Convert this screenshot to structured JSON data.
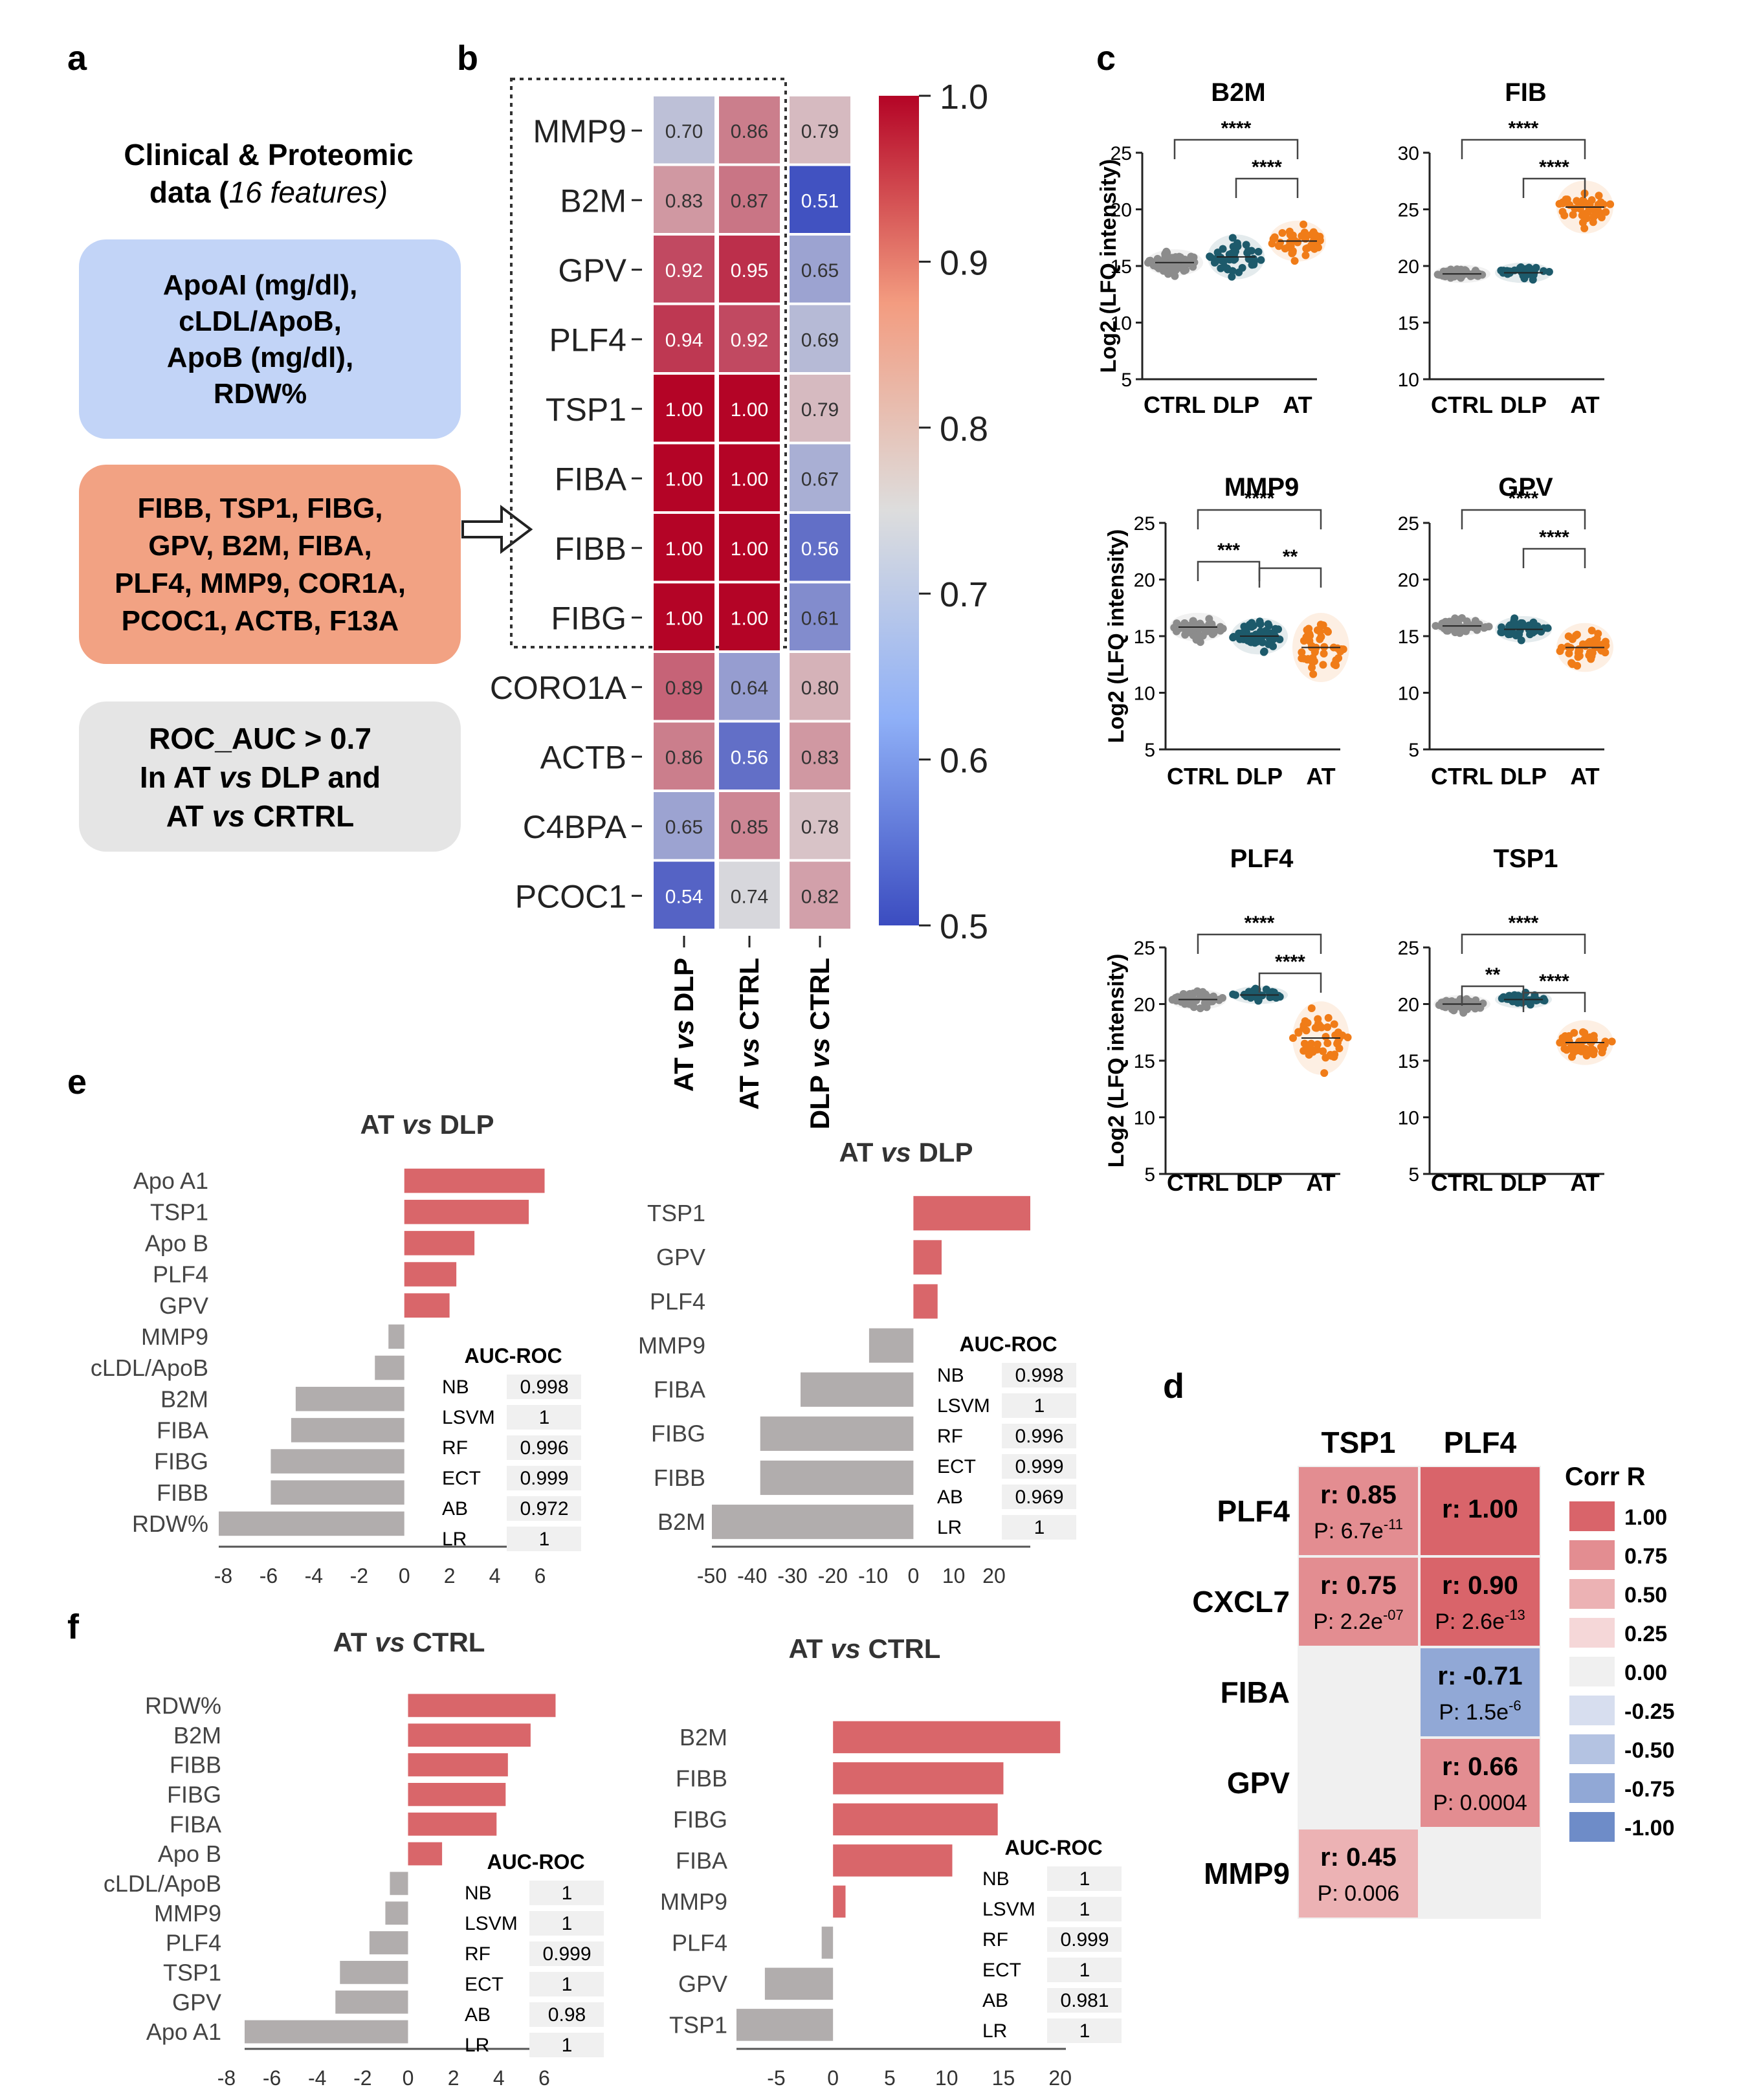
{
  "panel_labels": {
    "a": "a",
    "b": "b",
    "c": "c",
    "d": "d",
    "e": "e",
    "f": "f"
  },
  "panel_a": {
    "title_line1": "Clinical & Proteomic",
    "title_line2_pre": "data (",
    "title_line2_italic": "16 features)",
    "box_blue": [
      "ApoAI (mg/dl),",
      "cLDL/ApoB,",
      "ApoB (mg/dl),",
      "RDW%"
    ],
    "box_orange": [
      "FIBB, TSP1, FIBG,",
      "GPV, B2M, FIBA,",
      "PLF4, MMP9, COR1A,",
      "PCOC1, ACTB, F13A"
    ],
    "box_gray_line1": "ROC_AUC > 0.7",
    "box_gray_line2": [
      {
        "t": "In AT ",
        "i": false
      },
      {
        "t": "vs",
        "i": true
      },
      {
        "t": " DLP and",
        "i": false
      }
    ],
    "box_gray_line3": [
      {
        "t": "AT ",
        "i": false
      },
      {
        "t": "vs",
        "i": true
      },
      {
        "t": " CRTRL",
        "i": false
      }
    ],
    "colors": {
      "blue": "#c2d4f7",
      "orange": "#f2a283",
      "gray": "#e5e5e5"
    }
  },
  "chart_data": [
    {
      "panel": "b",
      "type": "heatmap",
      "rows": [
        "MMP9",
        "B2M",
        "GPV",
        "PLF4",
        "TSP1",
        "FIBA",
        "FIBB",
        "FIBG",
        "CORO1A",
        "ACTB",
        "C4BPA",
        "PCOC1"
      ],
      "columns": [
        [
          {
            "t": "AT ",
            "i": false
          },
          {
            "t": "vs",
            "i": true
          },
          {
            "t": " DLP",
            "i": false
          }
        ],
        [
          {
            "t": "AT ",
            "i": false
          },
          {
            "t": "vs",
            "i": true
          },
          {
            "t": " CTRL",
            "i": false
          }
        ],
        [
          {
            "t": "DLP ",
            "i": false
          },
          {
            "t": "vs",
            "i": true
          },
          {
            "t": " CTRL",
            "i": false
          }
        ]
      ],
      "values": [
        [
          0.7,
          0.86,
          0.79
        ],
        [
          0.83,
          0.87,
          0.51
        ],
        [
          0.92,
          0.95,
          0.65
        ],
        [
          0.94,
          0.92,
          0.69
        ],
        [
          1.0,
          1.0,
          0.79
        ],
        [
          1.0,
          1.0,
          0.67
        ],
        [
          1.0,
          1.0,
          0.56
        ],
        [
          1.0,
          1.0,
          0.61
        ],
        [
          0.89,
          0.64,
          0.8
        ],
        [
          0.86,
          0.56,
          0.83
        ],
        [
          0.65,
          0.85,
          0.78
        ],
        [
          0.54,
          0.74,
          0.82
        ]
      ],
      "labels": [
        [
          "0.70",
          "0.86",
          "0.79"
        ],
        [
          "0.83",
          "0.87",
          "0.51"
        ],
        [
          "0.92",
          "0.95",
          "0.65"
        ],
        [
          "0.94",
          "0.92",
          "0.69"
        ],
        [
          "1.00",
          "1.00",
          "0.79"
        ],
        [
          "1.00",
          "1.00",
          "0.67"
        ],
        [
          "1.00",
          "1.00",
          "0.56"
        ],
        [
          "1.00",
          "1.00",
          "0.61"
        ],
        [
          "0.89",
          "0.64",
          "0.80"
        ],
        [
          "0.86",
          "0.56",
          "0.83"
        ],
        [
          "0.65",
          "0.85",
          "0.78"
        ],
        [
          "0.54",
          "0.74",
          "0.82"
        ]
      ],
      "colorbar_ticks": [
        "1.0",
        "0.9",
        "0.8",
        "0.7",
        "0.6",
        "0.5"
      ],
      "range": [
        0.5,
        1.0
      ],
      "colormap": [
        "#3b4cc0",
        "#dddddd",
        "#b40426"
      ],
      "highlight_rows": [
        "MMP9",
        "B2M",
        "GPV",
        "PLF4",
        "TSP1",
        "FIBA",
        "FIBB",
        "FIBG"
      ]
    },
    {
      "panel": "c",
      "type": "scatter",
      "ylabel": "Log2 (LFQ intensity)",
      "groups": [
        "CTRL",
        "DLP",
        "AT"
      ],
      "group_colors": [
        "#8c8c8c",
        "#1d5a6b",
        "#f07c18"
      ],
      "plots": [
        {
          "title": "B2M",
          "ylim": [
            5,
            25
          ],
          "yticks": [
            "5",
            "10",
            "15",
            "20",
            "25"
          ],
          "medians": [
            15.3,
            15.8,
            17.2
          ],
          "spread": [
            1.3,
            2.2,
            2.0
          ],
          "n": [
            60,
            42,
            40
          ],
          "sig": [
            {
              "from": 0,
              "to": 2,
              "label": "****"
            },
            {
              "from": 1,
              "to": 2,
              "label": "****"
            }
          ]
        },
        {
          "title": "FIB",
          "ylim": [
            10,
            30
          ],
          "yticks": [
            "10",
            "15",
            "20",
            "25",
            "30"
          ],
          "medians": [
            19.3,
            19.4,
            25.2
          ],
          "spread": [
            0.6,
            1.0,
            2.6
          ],
          "n": [
            55,
            28,
            45
          ],
          "sig": [
            {
              "from": 0,
              "to": 2,
              "label": "****"
            },
            {
              "from": 1,
              "to": 2,
              "label": "****"
            }
          ]
        },
        {
          "title": "MMP9",
          "ylim": [
            5,
            25
          ],
          "yticks": [
            "5",
            "10",
            "15",
            "20",
            "25"
          ],
          "medians": [
            15.8,
            15.0,
            14.0
          ],
          "spread": [
            1.4,
            1.8,
            3.4
          ],
          "n": [
            55,
            50,
            45
          ],
          "sig": [
            {
              "from": 0,
              "to": 2,
              "label": "****"
            },
            {
              "from": 0,
              "to": 1,
              "label": "***"
            },
            {
              "from": 1,
              "to": 2,
              "label": "**"
            }
          ]
        },
        {
          "title": "GPV",
          "ylim": [
            5,
            25
          ],
          "yticks": [
            "5",
            "10",
            "15",
            "20",
            "25"
          ],
          "medians": [
            15.9,
            15.6,
            14.0
          ],
          "spread": [
            0.9,
            1.3,
            2.4
          ],
          "n": [
            55,
            40,
            40
          ],
          "sig": [
            {
              "from": 0,
              "to": 2,
              "label": "****"
            },
            {
              "from": 1,
              "to": 2,
              "label": "****"
            }
          ]
        },
        {
          "title": "PLF4",
          "ylim": [
            5,
            25
          ],
          "yticks": [
            "5",
            "10",
            "15",
            "20",
            "25"
          ],
          "medians": [
            20.4,
            20.8,
            17.0
          ],
          "spread": [
            1.0,
            0.8,
            3.6
          ],
          "n": [
            55,
            30,
            45
          ],
          "sig": [
            {
              "from": 0,
              "to": 2,
              "label": "****"
            },
            {
              "from": 1,
              "to": 2,
              "label": "****"
            }
          ]
        },
        {
          "title": "TSP1",
          "ylim": [
            5,
            25
          ],
          "yticks": [
            "5",
            "10",
            "15",
            "20",
            "25"
          ],
          "medians": [
            20.0,
            20.4,
            16.6
          ],
          "spread": [
            0.9,
            0.8,
            2.2
          ],
          "n": [
            55,
            35,
            45
          ],
          "sig": [
            {
              "from": 0,
              "to": 2,
              "label": "****"
            },
            {
              "from": 0,
              "to": 1,
              "label": "**"
            },
            {
              "from": 1,
              "to": 2,
              "label": "****"
            }
          ]
        }
      ]
    },
    {
      "panel": "d",
      "type": "heatmap",
      "columns": [
        "TSP1",
        "PLF4"
      ],
      "rows": [
        "PLF4",
        "CXCL7",
        "FIBA",
        "GPV",
        "MMP9"
      ],
      "cells": [
        [
          {
            "r": 0.85,
            "rtext": "r: 0.85",
            "pbase": "P: 6.7e",
            "pexp": "-11"
          },
          {
            "r": 1.0,
            "rtext": "r: 1.00",
            "pbase": "",
            "pexp": ""
          }
        ],
        [
          {
            "r": 0.75,
            "rtext": "r: 0.75",
            "pbase": "P: 2.2e",
            "pexp": "-07"
          },
          {
            "r": 0.9,
            "rtext": "r: 0.90",
            "pbase": "P: 2.6e",
            "pexp": "-13"
          }
        ],
        [
          null,
          {
            "r": -0.71,
            "rtext": "r: -0.71",
            "pbase": "P: 1.5e",
            "pexp": "-6"
          }
        ],
        [
          null,
          {
            "r": 0.66,
            "rtext": "r: 0.66",
            "pbase": "P: 0.0004",
            "pexp": ""
          }
        ],
        [
          {
            "r": 0.45,
            "rtext": "r: 0.45",
            "pbase": "P: 0.006",
            "pexp": ""
          },
          null
        ]
      ],
      "legend_title": "Corr R",
      "legend": [
        {
          "label": "1.00",
          "color": "#d9646a"
        },
        {
          "label": "0.75",
          "color": "#e38d91"
        },
        {
          "label": "0.50",
          "color": "#ecb2b4"
        },
        {
          "label": "0.25",
          "color": "#f5d7d8"
        },
        {
          "label": "0.00",
          "color": "#f0f0f0"
        },
        {
          "label": "-0.25",
          "color": "#d7deef"
        },
        {
          "label": "-0.50",
          "color": "#b4c3e2"
        },
        {
          "label": "-0.75",
          "color": "#91a8d6"
        },
        {
          "label": "-1.00",
          "color": "#6e8cc8"
        }
      ]
    },
    {
      "panel": "e-left",
      "type": "bar",
      "title": [
        {
          "t": "AT ",
          "i": false
        },
        {
          "t": "vs",
          "i": true
        },
        {
          "t": " DLP",
          "i": false
        }
      ],
      "categories": [
        "Apo A1",
        "TSP1",
        "Apo B",
        "PLF4",
        "GPV",
        "MMP9",
        "cLDL/ApoB",
        "B2M",
        "FIBA",
        "FIBG",
        "FIBB",
        "RDW%"
      ],
      "values": [
        6.2,
        5.5,
        3.1,
        2.3,
        2.0,
        -0.7,
        -1.3,
        -4.8,
        -5.0,
        -5.9,
        -5.9,
        -8.2
      ],
      "xlim": [
        -8.2,
        6.5
      ],
      "xticks": [
        -8,
        -6,
        -4,
        -2,
        0,
        2,
        4,
        6
      ],
      "xtick_labels": [
        "-8",
        "-6",
        "-4",
        "-2",
        "0",
        "2",
        "4",
        "6"
      ],
      "auc_title": "AUC-ROC",
      "auc": [
        [
          "NB",
          "0.998"
        ],
        [
          "LSVM",
          "1"
        ],
        [
          "RF",
          "0.996"
        ],
        [
          "ECT",
          "0.999"
        ],
        [
          "AB",
          "0.972"
        ],
        [
          "LR",
          "1"
        ]
      ]
    },
    {
      "panel": "e-right",
      "type": "bar",
      "title": [
        {
          "t": "AT ",
          "i": false
        },
        {
          "t": "vs",
          "i": true
        },
        {
          "t": " DLP",
          "i": false
        }
      ],
      "categories": [
        "TSP1",
        "GPV",
        "PLF4",
        "MMP9",
        "FIBA",
        "FIBG",
        "FIBB",
        "B2M"
      ],
      "values": [
        29,
        7,
        6,
        -11,
        -28,
        -38,
        -38,
        -50
      ],
      "xlim": [
        -50,
        29
      ],
      "xticks": [
        -50,
        -40,
        -30,
        -20,
        -10,
        0,
        10,
        20
      ],
      "xtick_labels": [
        "-50",
        "-40",
        "-30",
        "-20",
        "-10",
        "0",
        "10",
        "20"
      ],
      "auc_title": "AUC-ROC",
      "auc": [
        [
          "NB",
          "0.998"
        ],
        [
          "LSVM",
          "1"
        ],
        [
          "RF",
          "0.996"
        ],
        [
          "ECT",
          "0.999"
        ],
        [
          "AB",
          "0.969"
        ],
        [
          "LR",
          "1"
        ]
      ]
    },
    {
      "panel": "f-left",
      "type": "bar",
      "title": [
        {
          "t": "AT ",
          "i": false
        },
        {
          "t": "vs",
          "i": true
        },
        {
          "t": " CTRL",
          "i": false
        }
      ],
      "categories": [
        "RDW%",
        "B2M",
        "FIBB",
        "FIBG",
        "FIBA",
        "Apo B",
        "cLDL/ApoB",
        "MMP9",
        "PLF4",
        "TSP1",
        "GPV",
        "Apo A1"
      ],
      "values": [
        6.5,
        5.4,
        4.4,
        4.3,
        3.9,
        1.5,
        -0.8,
        -1.0,
        -1.7,
        -3.0,
        -3.2,
        -7.2
      ],
      "xlim": [
        -7.2,
        7.0
      ],
      "xticks": [
        -8,
        -6,
        -4,
        -2,
        0,
        2,
        4,
        6
      ],
      "xtick_labels": [
        "-8",
        "-6",
        "-4",
        "-2",
        "0",
        "2",
        "4",
        "6"
      ],
      "auc_title": "AUC-ROC",
      "auc": [
        [
          "NB",
          "1"
        ],
        [
          "LSVM",
          "1"
        ],
        [
          "RF",
          "0.999"
        ],
        [
          "ECT",
          "1"
        ],
        [
          "AB",
          "0.98"
        ],
        [
          "LR",
          "1"
        ]
      ]
    },
    {
      "panel": "f-right",
      "type": "bar",
      "title": [
        {
          "t": "AT ",
          "i": false
        },
        {
          "t": "vs",
          "i": true
        },
        {
          "t": " CTRL",
          "i": false
        }
      ],
      "categories": [
        "B2M",
        "FIBB",
        "FIBG",
        "FIBA",
        "MMP9",
        "PLF4",
        "GPV",
        "TSP1"
      ],
      "values": [
        20,
        15,
        14.5,
        10.5,
        1.1,
        -1.0,
        -6,
        -8.5
      ],
      "xlim": [
        -8.5,
        20.5
      ],
      "xticks": [
        -5,
        0,
        5,
        10,
        15,
        20
      ],
      "xtick_labels": [
        "-5",
        "0",
        "5",
        "10",
        "15",
        "20"
      ],
      "auc_title": "AUC-ROC",
      "auc": [
        [
          "NB",
          "1"
        ],
        [
          "LSVM",
          "1"
        ],
        [
          "RF",
          "0.999"
        ],
        [
          "ECT",
          "1"
        ],
        [
          "AB",
          "0.981"
        ],
        [
          "LR",
          "1"
        ]
      ]
    }
  ],
  "bar_colors": {
    "positive": "#d9666a",
    "negative": "#b1adad",
    "auc_value_bg": "#f0f0f0"
  }
}
